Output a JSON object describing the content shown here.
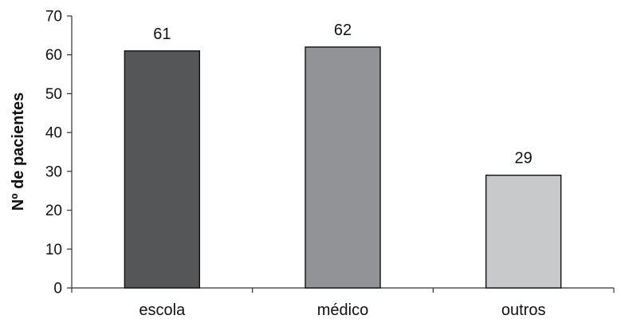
{
  "chart_data": {
    "type": "bar",
    "title": "",
    "xlabel": "",
    "ylabel": "Nº de pacientes",
    "categories": [
      "escola",
      "médico",
      "outros"
    ],
    "values": [
      61,
      62,
      29
    ],
    "data_labels": [
      "61",
      "62",
      "29"
    ],
    "ylim": [
      0,
      70
    ],
    "yticks": [
      0,
      10,
      20,
      30,
      40,
      50,
      60,
      70
    ],
    "ytick_labels": [
      "0",
      "10",
      "20",
      "30",
      "40",
      "50",
      "60",
      "70"
    ],
    "grid": false,
    "legend": "none",
    "colors": [
      "#555658",
      "#929396",
      "#c8c9cb"
    ],
    "edge_color": "#111111"
  }
}
